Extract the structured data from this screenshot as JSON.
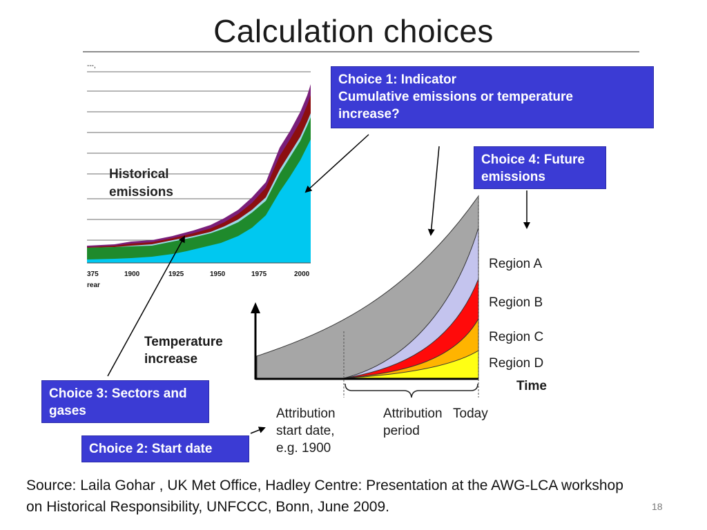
{
  "slide": {
    "title": "Calculation choices",
    "page_number": "18"
  },
  "choices": {
    "choice1_line1": "Choice 1: Indicator",
    "choice1_line2": "Cumulative emissions or temperature",
    "choice1_line3": "increase?",
    "choice2": "Choice 2: Start date",
    "choice3_line1": "Choice 3: Sectors and",
    "choice3_line2": "gases",
    "choice4_line1": "Choice 4: Future",
    "choice4_line2": "emissions"
  },
  "historical_chart": {
    "label_line1": "Historical",
    "label_line2": "emissions",
    "top_axis_fragment": "---,",
    "x_ticks": [
      "375",
      "1900",
      "1925",
      "1950",
      "1975",
      "2000"
    ],
    "x_axis_fragment": "rear",
    "colors": {
      "base": "#00c8f0",
      "green": "#1f8a2c",
      "light": "#9ad9e6",
      "red": "#8c0f10",
      "purple": "#7a1f7a"
    }
  },
  "temperature_chart": {
    "ylabel_line1": "Temperature",
    "ylabel_line2": "increase",
    "xlabel": "Time",
    "regions": [
      "Region A",
      "Region B",
      "Region C",
      "Region D"
    ],
    "attribution_start_line1": "Attribution",
    "attribution_start_line2": "start date,",
    "attribution_start_line3": "e.g. 1900",
    "attribution_period_line1": "Attribution",
    "attribution_period_line2": "period",
    "today": "Today",
    "colors": {
      "gray": "#a6a6a6",
      "lavender": "#c4c4ee",
      "red": "#ff0a0a",
      "orange": "#ffb400",
      "yellow": "#ffff14"
    }
  },
  "source": {
    "line1": "Source: Laila Gohar , UK Met Office,  Hadley Centre: Presentation at the AWG-LCA workshop",
    "line2": "on Historical Responsibility, UNFCCC, Bonn, June 2009."
  }
}
